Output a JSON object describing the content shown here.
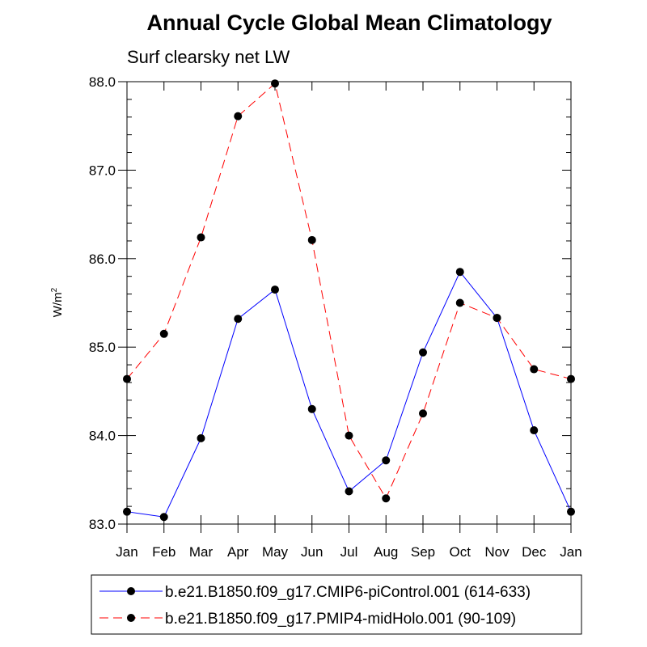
{
  "chart_data": {
    "type": "line",
    "title": "Annual Cycle Global Mean Climatology",
    "subtitle": "Surf clearsky net LW",
    "ylabel": "W/m",
    "ylabel_superscript": "2",
    "ylim": [
      83.0,
      88.0
    ],
    "yticks": [
      "83.0",
      "84.0",
      "85.0",
      "86.0",
      "87.0",
      "88.0"
    ],
    "grid": false,
    "categories": [
      "Jan",
      "Feb",
      "Mar",
      "Apr",
      "May",
      "Jun",
      "Jul",
      "Aug",
      "Sep",
      "Oct",
      "Nov",
      "Dec",
      "Jan"
    ],
    "legend_position": "bottom",
    "series": [
      {
        "name": "b.e21.B1850.f09_g17.CMIP6-piControl.001 (614-633)",
        "color": "#0000ff",
        "dash": "solid",
        "values": [
          83.14,
          83.08,
          83.97,
          85.32,
          85.65,
          84.3,
          83.37,
          83.72,
          84.94,
          85.85,
          85.33,
          84.06,
          83.14
        ]
      },
      {
        "name": "b.e21.B1850.f09_g17.PMIP4-midHolo.001 (90-109)",
        "color": "#ff0000",
        "dash": "dashed",
        "values": [
          84.64,
          85.15,
          86.24,
          87.61,
          87.98,
          86.21,
          84.0,
          83.29,
          84.25,
          85.5,
          85.33,
          84.75,
          84.64
        ]
      }
    ]
  }
}
